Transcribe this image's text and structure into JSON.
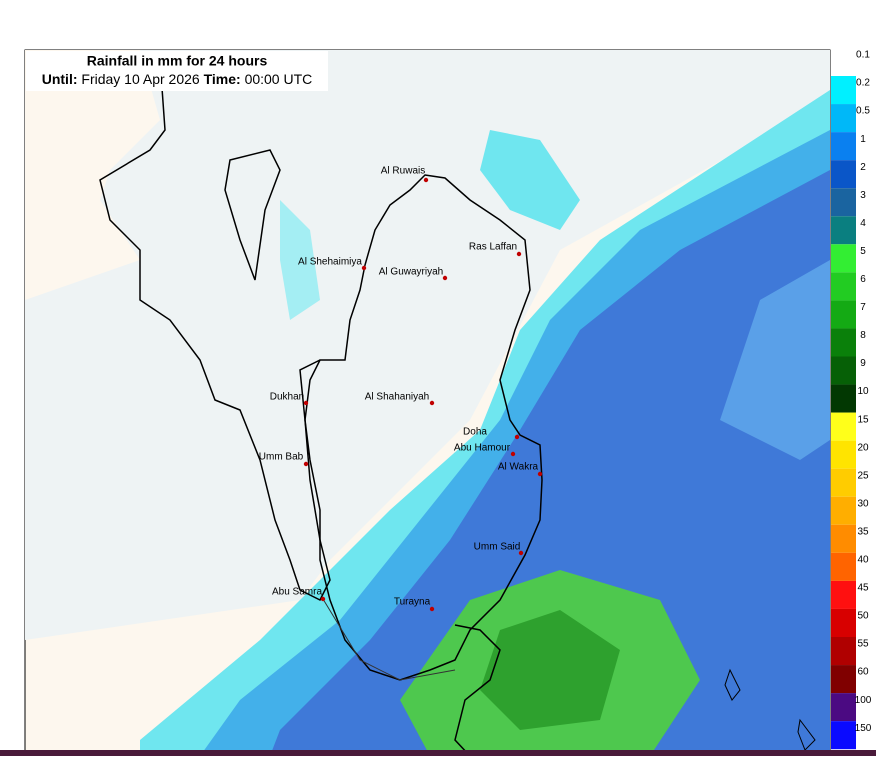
{
  "title": "Rainfall in mm for 24 hours",
  "until_label": "Until:",
  "date": "Friday 10 Apr 2026",
  "time_label": "Time:",
  "time": "00:00 UTC",
  "places": [
    "Al Ruwais",
    "Ras Laffan",
    "Al Shehaimiya",
    "Al Guwayriyah",
    "Dukhan",
    "Al Shahaniyah",
    "Doha",
    "Abu Hamour",
    "Al Wakra",
    "Umm Bab",
    "Umm Said",
    "Abu Samra",
    "Turayna"
  ],
  "legend": {
    "labels": [
      "0.1",
      "0.2",
      "0.5",
      "1",
      "2",
      "3",
      "4",
      "5",
      "6",
      "7",
      "8",
      "9",
      "10",
      "15",
      "20",
      "25",
      "30",
      "35",
      "40",
      "45",
      "50",
      "55",
      "60",
      "100",
      "150"
    ],
    "colors": [
      "#00f0ff",
      "#00b8f8",
      "#0a80f0",
      "#0a56c8",
      "#1a64a0",
      "#0a7f80",
      "#33ee33",
      "#22cc22",
      "#14aa14",
      "#0a800a",
      "#066006",
      "#023802",
      "#ffff1a",
      "#ffe400",
      "#ffcc00",
      "#ffae00",
      "#ff8c00",
      "#ff6400",
      "#ff1010",
      "#d80000",
      "#b00000",
      "#800000",
      "#4b0a82",
      "#0a0aff"
    ]
  }
}
